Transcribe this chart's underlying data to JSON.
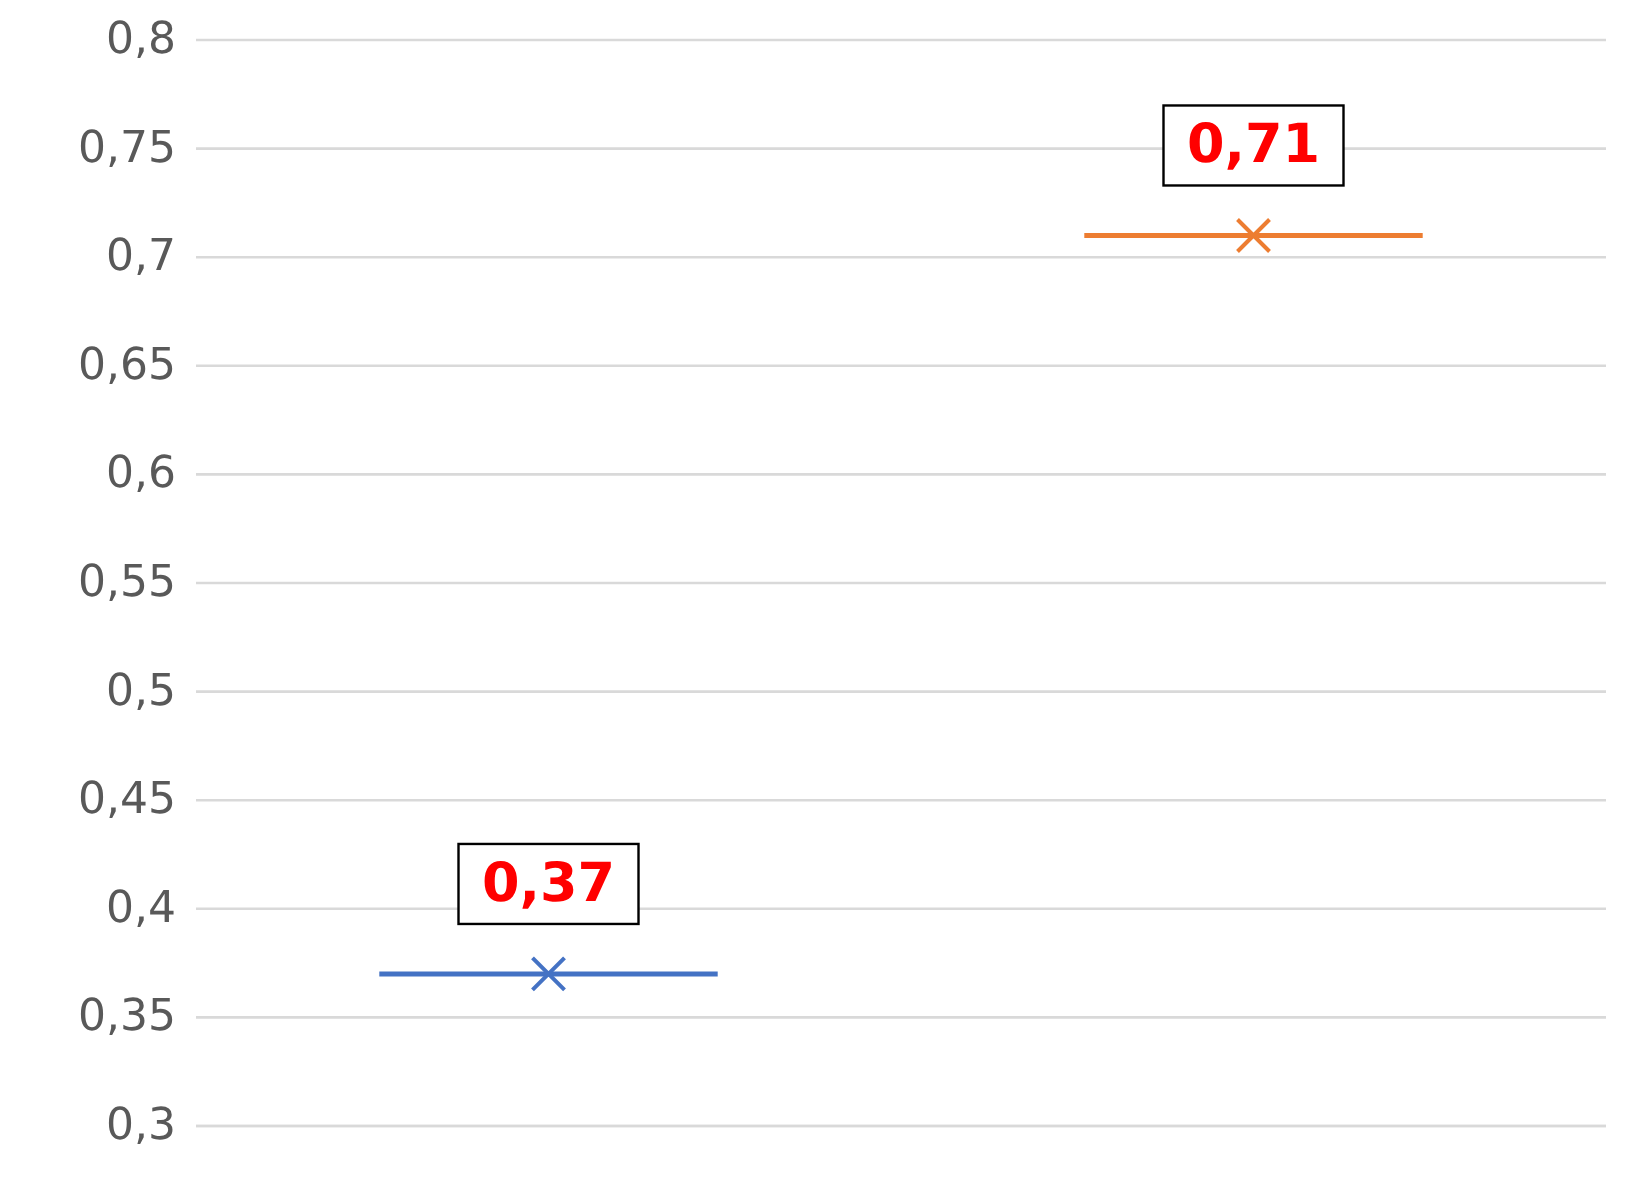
{
  "chart_data": {
    "type": "box",
    "categories": [
      null,
      null
    ],
    "boxes": [
      {
        "low": 0.37,
        "q1": 0.37,
        "median": 0.37,
        "q3": 0.37,
        "high": 0.37,
        "mean": 0.37
      },
      {
        "low": 0.71,
        "q1": 0.71,
        "median": 0.71,
        "q3": 0.71,
        "high": 0.71,
        "mean": 0.71
      }
    ],
    "colors": [
      "#4472c4",
      "#ed7d31"
    ],
    "value_labels": [
      "0,37",
      "0,71"
    ],
    "ylim": [
      0.3,
      0.8
    ],
    "yticks": [
      {
        "value": 0.3,
        "label": "0,3"
      },
      {
        "value": 0.35,
        "label": "0,35"
      },
      {
        "value": 0.4,
        "label": "0,4"
      },
      {
        "value": 0.45,
        "label": "0,45"
      },
      {
        "value": 0.5,
        "label": "0,5"
      },
      {
        "value": 0.55,
        "label": "0,55"
      },
      {
        "value": 0.6,
        "label": "0,6"
      },
      {
        "value": 0.65,
        "label": "0,65"
      },
      {
        "value": 0.7,
        "label": "0,7"
      },
      {
        "value": 0.75,
        "label": "0,75"
      },
      {
        "value": 0.8,
        "label": "0,8"
      }
    ],
    "grid": "y",
    "marker": "cross"
  }
}
